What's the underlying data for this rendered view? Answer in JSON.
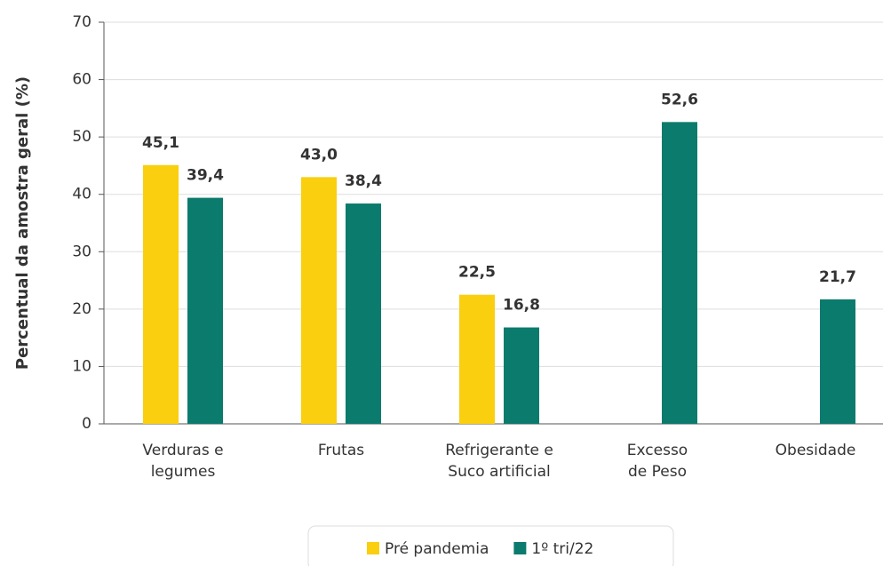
{
  "chart_data": {
    "type": "bar",
    "y_label": "Percentual da amostra geral (%)",
    "categories": [
      "Verduras e\nlegumes",
      "Frutas",
      "Refrigerante e\nSuco artificial",
      "Excesso\nde Peso",
      "Obesidade"
    ],
    "series": [
      {
        "name": "Pré pandemia",
        "color": "#f9cf0f",
        "values": [
          45.1,
          43.0,
          22.5,
          null,
          null
        ],
        "value_labels": [
          "45,1",
          "43,0",
          "22,5",
          null,
          null
        ]
      },
      {
        "name": "1º tri/22",
        "color": "#0a7b6c",
        "values": [
          39.4,
          38.4,
          16.8,
          52.6,
          21.7
        ],
        "value_labels": [
          "39,4",
          "38,4",
          "16,8",
          "52,6",
          "21,7"
        ]
      }
    ],
    "ylim": [
      0,
      70
    ],
    "yticks": [
      0,
      10,
      20,
      30,
      40,
      50,
      60,
      70
    ],
    "grid": true
  }
}
